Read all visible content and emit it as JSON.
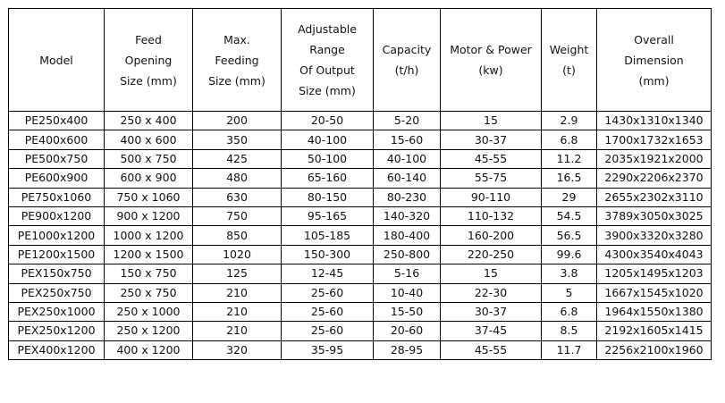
{
  "table": {
    "headers": [
      [
        "Model"
      ],
      [
        "Feed",
        "Opening",
        "Size (mm)"
      ],
      [
        "Max.",
        "Feeding",
        "Size (mm)"
      ],
      [
        "Adjustable",
        "Range",
        "Of Output",
        "Size (mm)"
      ],
      [
        "Capacity",
        "(t/h)"
      ],
      [
        "Motor & Power",
        "(kw)"
      ],
      [
        "Weight",
        "(t)"
      ],
      [
        "Overall",
        "Dimension",
        "(mm)"
      ]
    ],
    "rows": [
      [
        "PE250x400",
        "250 x 400",
        "200",
        "20-50",
        "5-20",
        "15",
        "2.9",
        "1430x1310x1340"
      ],
      [
        "PE400x600",
        "400 x 600",
        "350",
        "40-100",
        "15-60",
        "30-37",
        "6.8",
        "1700x1732x1653"
      ],
      [
        "PE500x750",
        "500 x 750",
        "425",
        "50-100",
        "40-100",
        "45-55",
        "11.2",
        "2035x1921x2000"
      ],
      [
        "PE600x900",
        "600 x 900",
        "480",
        "65-160",
        "60-140",
        "55-75",
        "16.5",
        "2290x2206x2370"
      ],
      [
        "PE750x1060",
        "750 x 1060",
        "630",
        "80-150",
        "80-230",
        "90-110",
        "29",
        "2655x2302x3110"
      ],
      [
        "PE900x1200",
        "900 x 1200",
        "750",
        "95-165",
        "140-320",
        "110-132",
        "54.5",
        "3789x3050x3025"
      ],
      [
        "PE1000x1200",
        "1000 x 1200",
        "850",
        "105-185",
        "180-400",
        "160-200",
        "56.5",
        "3900x3320x3280"
      ],
      [
        "PE1200x1500",
        "1200 x 1500",
        "1020",
        "150-300",
        "250-800",
        "220-250",
        "99.6",
        "4300x3540x4043"
      ],
      [
        "PEX150x750",
        "150 x 750",
        "125",
        "12-45",
        "5-16",
        "15",
        "3.8",
        "1205x1495x1203"
      ],
      [
        "PEX250x750",
        "250 x 750",
        "210",
        "25-60",
        "10-40",
        "22-30",
        "5",
        "1667x1545x1020"
      ],
      [
        "PEX250x1000",
        "250 x 1000",
        "210",
        "25-60",
        "15-50",
        "30-37",
        "6.8",
        "1964x1550x1380"
      ],
      [
        "PEX250x1200",
        "250 x 1200",
        "210",
        "25-60",
        "20-60",
        "37-45",
        "8.5",
        "2192x1605x1415"
      ],
      [
        "PEX400x1200",
        "400 x 1200",
        "320",
        "35-95",
        "28-95",
        "45-55",
        "11.7",
        "2256x2100x1960"
      ]
    ]
  }
}
